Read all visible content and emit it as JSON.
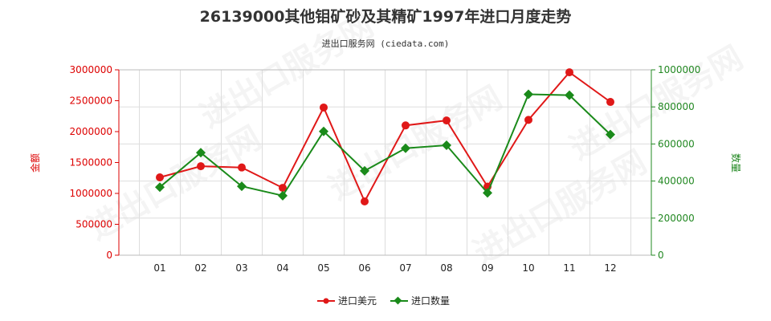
{
  "chart_data": {
    "type": "line",
    "title": "26139000其他钼矿砂及其精矿1997年进口月度走势",
    "subtitle": "进出口服务网 (ciedata.com)",
    "categories": [
      "01",
      "02",
      "03",
      "04",
      "05",
      "06",
      "07",
      "08",
      "09",
      "10",
      "11",
      "12"
    ],
    "y_left": {
      "label": "金额",
      "ylim": [
        0,
        3000000
      ],
      "ticks": [
        "0",
        "500000",
        "1000000",
        "1500000",
        "2000000",
        "2500000",
        "3000000"
      ],
      "color": "#dd0000"
    },
    "y_right": {
      "label": "数量",
      "ylim": [
        0,
        1000000
      ],
      "ticks": [
        "0",
        "200000",
        "400000",
        "600000",
        "800000",
        "1000000"
      ],
      "color": "#228822"
    },
    "series": [
      {
        "name": "进口美元",
        "axis": "left",
        "color": "#e01818",
        "values": [
          1260000,
          1440000,
          1420000,
          1090000,
          2390000,
          870000,
          2100000,
          2180000,
          1110000,
          2190000,
          2960000,
          2480000
        ]
      },
      {
        "name": "进口数量",
        "axis": "right",
        "color": "#1a8a1a",
        "values": [
          367000,
          553000,
          372000,
          321000,
          668000,
          455000,
          577000,
          593000,
          336000,
          868000,
          863000,
          651000
        ]
      }
    ],
    "grid": true,
    "legend_position": "bottom-center"
  },
  "watermark": "进出口服务网"
}
